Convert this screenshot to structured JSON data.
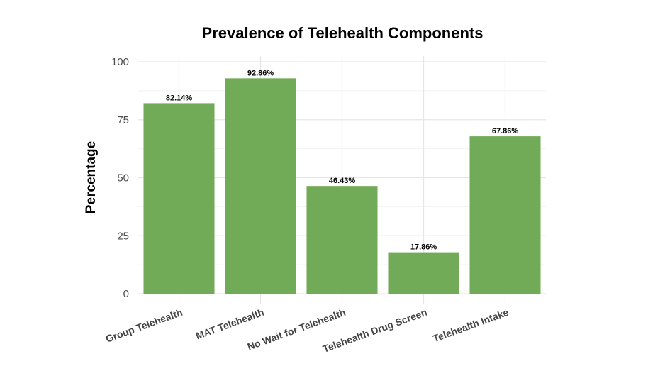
{
  "chart_data": {
    "type": "bar",
    "title": "Prevalence of Telehealth Components",
    "xlabel": "",
    "ylabel": "Percentage",
    "categories": [
      "Group Telehealth",
      "MAT Telehealth",
      "No Wait for Telehealth",
      "Telehealth Drug Screen",
      "Telehealth Intake"
    ],
    "values": [
      82.14,
      92.86,
      46.43,
      17.86,
      67.86
    ],
    "data_labels": [
      "82.14%",
      "92.86%",
      "46.43%",
      "17.86%",
      "67.86%"
    ],
    "ylim": [
      0,
      100
    ],
    "yticks": [
      "0",
      "25",
      "50",
      "75",
      "100"
    ],
    "grid": true,
    "bar_color": "#72ab57"
  }
}
